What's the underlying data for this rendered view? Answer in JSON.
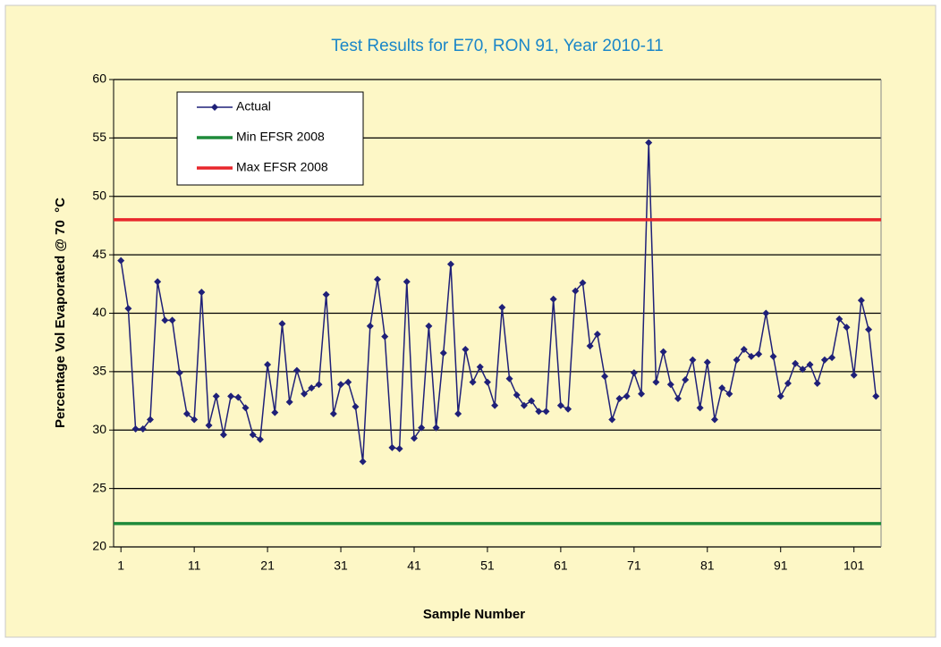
{
  "chart_data": {
    "type": "line",
    "title": "Test Results for E70, RON 91, Year 2010-11",
    "x_label": "Sample Number",
    "y_label": "Percentage Vol Evaporated @ 70  °C",
    "x": [
      1,
      2,
      3,
      4,
      5,
      6,
      7,
      8,
      9,
      10,
      11,
      12,
      13,
      14,
      15,
      16,
      17,
      18,
      19,
      20,
      21,
      22,
      23,
      24,
      25,
      26,
      27,
      28,
      29,
      30,
      31,
      32,
      33,
      34,
      35,
      36,
      37,
      38,
      39,
      40,
      41,
      42,
      43,
      44,
      45,
      46,
      47,
      48,
      49,
      50,
      51,
      52,
      53,
      54,
      55,
      56,
      57,
      58,
      59,
      60,
      61,
      62,
      63,
      64,
      65,
      66,
      67,
      68,
      69,
      70,
      71,
      72,
      73,
      74,
      75,
      76,
      77,
      78,
      79,
      80,
      81,
      82,
      83,
      84,
      85,
      86,
      87,
      88,
      89,
      90,
      91,
      92,
      93,
      94,
      95,
      96,
      97,
      98,
      99,
      100,
      101,
      102,
      103,
      104
    ],
    "xlim": [
      0,
      104.7
    ],
    "xticks": [
      1,
      11,
      21,
      31,
      41,
      51,
      61,
      71,
      81,
      91,
      101
    ],
    "ylim": [
      20,
      60
    ],
    "yticks": [
      20,
      25,
      30,
      35,
      40,
      45,
      50,
      55,
      60
    ],
    "grid": true,
    "legend": "upper-left",
    "series": [
      {
        "name": "Actual",
        "color": "#1f2078",
        "values": [
          44.5,
          40.4,
          30.1,
          30.1,
          30.9,
          42.7,
          39.4,
          39.4,
          34.9,
          31.4,
          30.9,
          41.8,
          30.4,
          32.9,
          29.6,
          32.9,
          32.8,
          31.9,
          29.6,
          29.2,
          35.6,
          31.5,
          39.1,
          32.4,
          35.1,
          33.1,
          33.6,
          33.9,
          41.6,
          31.4,
          33.9,
          34.1,
          32.0,
          27.3,
          38.9,
          42.9,
          38.0,
          28.5,
          28.4,
          42.7,
          29.3,
          30.2,
          38.9,
          30.2,
          36.6,
          44.2,
          31.4,
          36.9,
          34.1,
          35.4,
          34.1,
          32.1,
          40.5,
          34.4,
          33.0,
          32.1,
          32.5,
          31.6,
          31.6,
          41.2,
          32.1,
          31.8,
          41.9,
          42.6,
          37.2,
          38.2,
          34.6,
          30.9,
          32.7,
          32.9,
          34.9,
          33.1,
          54.6,
          34.1,
          36.7,
          33.9,
          32.7,
          34.3,
          36.0,
          31.9,
          35.8,
          30.9,
          33.6,
          33.1,
          36.0,
          36.9,
          36.3,
          36.5,
          40.0,
          36.3,
          32.9,
          34.0,
          35.7,
          35.2,
          35.6,
          34.0,
          36.0,
          36.2,
          39.5,
          38.8,
          34.7,
          41.1,
          38.6,
          32.9
        ]
      },
      {
        "name": "Min EFSR 2008",
        "color": "#1e8a3a",
        "value": 22
      },
      {
        "name": "Max EFSR 2008",
        "color": "#e8262b",
        "value": 48
      }
    ]
  }
}
